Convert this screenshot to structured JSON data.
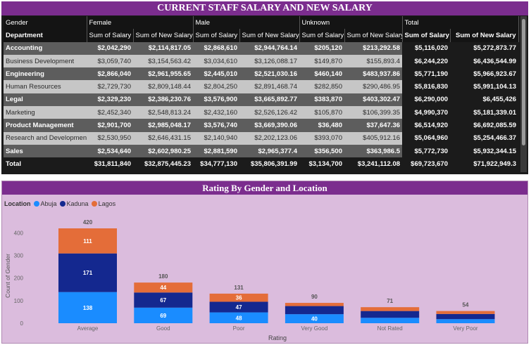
{
  "salary_table": {
    "title": "CURRENT STAFF SALARY AND NEW SALARY",
    "gender_label": "Gender",
    "department_label": "Department",
    "groups": [
      "Female",
      "Male",
      "Unknown",
      "Total"
    ],
    "measures": [
      "Sum of Salary",
      "Sum of New Salary"
    ],
    "rows": [
      {
        "department": "Accounting",
        "values": [
          "$2,042,290",
          "$2,114,817.05",
          "$2,868,610",
          "$2,944,764.14",
          "$205,120",
          "$213,292.58",
          "$5,116,020",
          "$5,272,873.77"
        ]
      },
      {
        "department": "Business Development",
        "values": [
          "$3,059,740",
          "$3,154,563.42",
          "$3,034,610",
          "$3,126,088.17",
          "$149,870",
          "$155,893.4",
          "$6,244,220",
          "$6,436,544.99"
        ]
      },
      {
        "department": "Engineering",
        "values": [
          "$2,866,040",
          "$2,961,955.65",
          "$2,445,010",
          "$2,521,030.16",
          "$460,140",
          "$483,937.86",
          "$5,771,190",
          "$5,966,923.67"
        ]
      },
      {
        "department": "Human Resources",
        "values": [
          "$2,729,730",
          "$2,809,148.44",
          "$2,804,250",
          "$2,891,468.74",
          "$282,850",
          "$290,486.95",
          "$5,816,830",
          "$5,991,104.13"
        ]
      },
      {
        "department": "Legal",
        "values": [
          "$2,329,230",
          "$2,386,230.76",
          "$3,576,900",
          "$3,665,892.77",
          "$383,870",
          "$403,302.47",
          "$6,290,000",
          "$6,455,426"
        ]
      },
      {
        "department": "Marketing",
        "values": [
          "$2,452,340",
          "$2,548,813.24",
          "$2,432,160",
          "$2,526,126.42",
          "$105,870",
          "$106,399.35",
          "$4,990,370",
          "$5,181,339.01"
        ]
      },
      {
        "department": "Product Management",
        "values": [
          "$2,901,700",
          "$2,985,048.17",
          "$3,576,740",
          "$3,669,390.06",
          "$36,480",
          "$37,647.36",
          "$6,514,920",
          "$6,692,085.59"
        ]
      },
      {
        "department": "Research and Development",
        "values": [
          "$2,530,950",
          "$2,646,431.15",
          "$2,140,940",
          "$2,202,123.06",
          "$393,070",
          "$405,912.16",
          "$5,064,960",
          "$5,254,466.37"
        ]
      },
      {
        "department": "Sales",
        "values": [
          "$2,534,640",
          "$2,602,980.25",
          "$2,881,590",
          "$2,965,377.4",
          "$356,500",
          "$363,986.5",
          "$5,772,730",
          "$5,932,344.15"
        ]
      }
    ],
    "total": {
      "department": "Total",
      "values": [
        "$31,811,840",
        "$32,875,445.23",
        "$34,777,130",
        "$35,806,391.99",
        "$3,134,700",
        "$3,241,112.08",
        "$69,723,670",
        "$71,922,949.3"
      ]
    }
  },
  "chart_data": {
    "type": "bar",
    "stacked": true,
    "title": "Rating By Gender and Location",
    "legend_title": "Location",
    "xlabel": "Rating",
    "ylabel": "Count of Gender",
    "ylim": [
      0,
      420
    ],
    "yticks": [
      0,
      100,
      200,
      300,
      400
    ],
    "categories": [
      "Average",
      "Good",
      "Poor",
      "Very Good",
      "Not Rated",
      "Very Poor"
    ],
    "totals": [
      420,
      180,
      131,
      90,
      71,
      54
    ],
    "series": [
      {
        "name": "Abuja",
        "color": "#1a8cff",
        "values": [
          138,
          69,
          48,
          40,
          24,
          18
        ],
        "labels": [
          "138",
          "69",
          "48",
          "40",
          "",
          ""
        ]
      },
      {
        "name": "Kaduna",
        "color": "#14288f",
        "values": [
          171,
          67,
          47,
          36,
          30,
          23
        ],
        "labels": [
          "171",
          "67",
          "47",
          "",
          "",
          ""
        ]
      },
      {
        "name": "Lagos",
        "color": "#e46d39",
        "values": [
          111,
          44,
          36,
          14,
          17,
          13
        ],
        "labels": [
          "111",
          "44",
          "36",
          "",
          "",
          ""
        ]
      }
    ]
  }
}
